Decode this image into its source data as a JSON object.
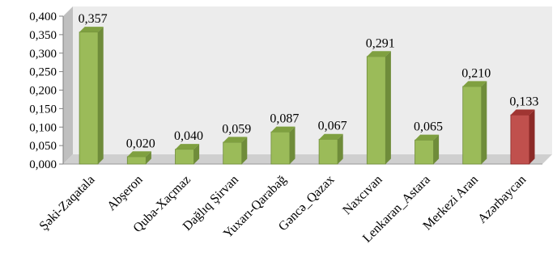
{
  "chart_data": {
    "type": "bar",
    "categories": [
      "Şəki-Zaqatala",
      "Abşeron",
      "Quba-Xaçmaz",
      "Dağlıq Şirvan",
      "Yuxarı-Qarabağ",
      "Gəncə_Qazax",
      "Naxcıvan",
      "Lenkaran_Astara",
      "Merkezi Aran",
      "Azərbaycan"
    ],
    "values": [
      0.357,
      0.02,
      0.04,
      0.059,
      0.087,
      0.067,
      0.291,
      0.065,
      0.21,
      0.133
    ],
    "value_labels": [
      "0,357",
      "0,020",
      "0,040",
      "0,059",
      "0,087",
      "0,067",
      "0,291",
      "0,065",
      "0,210",
      "0,133"
    ],
    "y_ticks": [
      0,
      0.05,
      0.1,
      0.15,
      0.2,
      0.25,
      0.3,
      0.35,
      0.4
    ],
    "y_tick_labels": [
      "0,000",
      "0,050",
      "0,100",
      "0,150",
      "0,200",
      "0,250",
      "0,300",
      "0,350",
      "0,400"
    ],
    "ylim": [
      0,
      0.4
    ],
    "title": "",
    "xlabel": "",
    "ylabel": "",
    "grid": false,
    "legend": false,
    "bar_colors": [
      "#9bbb59",
      "#9bbb59",
      "#9bbb59",
      "#9bbb59",
      "#9bbb59",
      "#9bbb59",
      "#9bbb59",
      "#9bbb59",
      "#9bbb59",
      "#c0504d"
    ],
    "bar_side_colors": [
      "#6f8c3a",
      "#6f8c3a",
      "#6f8c3a",
      "#6f8c3a",
      "#6f8c3a",
      "#6f8c3a",
      "#6f8c3a",
      "#6f8c3a",
      "#6f8c3a",
      "#8b2a27"
    ],
    "bar_top_colors": [
      "#7fa040",
      "#7fa040",
      "#7fa040",
      "#7fa040",
      "#7fa040",
      "#7fa040",
      "#7fa040",
      "#7fa040",
      "#7fa040",
      "#a03532"
    ],
    "wall_color": "#ececec",
    "floor_color": "#cfcfcf",
    "style": "3d-column"
  }
}
